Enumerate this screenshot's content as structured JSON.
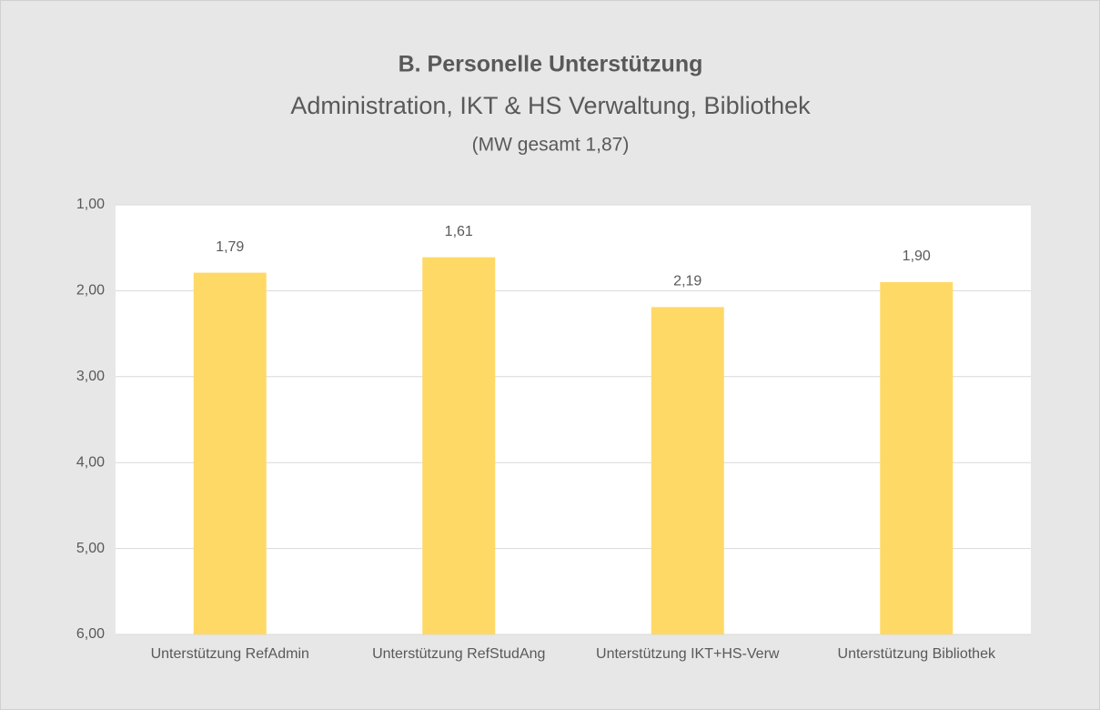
{
  "chart_data": {
    "type": "bar",
    "title": "B. Personelle Unterstützung",
    "subtitle": "Administration, IKT & HS Verwaltung, Bibliothek",
    "annotation": "(MW gesamt 1,87)",
    "categories": [
      "Unterstützung RefAdmin",
      "Unterstützung RefStudAng",
      "Unterstützung IKT+HS-Verw",
      "Unterstützung Bibliothek"
    ],
    "values": [
      1.79,
      1.61,
      2.19,
      1.9
    ],
    "value_labels": [
      "1,79",
      "1,61",
      "2,19",
      "1,90"
    ],
    "color": "#ffd966",
    "ylim": [
      6,
      1
    ],
    "yticks": [
      {
        "value": 1,
        "label": "1,00"
      },
      {
        "value": 2,
        "label": "2,00"
      },
      {
        "value": 3,
        "label": "3,00"
      },
      {
        "value": 4,
        "label": "4,00"
      },
      {
        "value": 5,
        "label": "5,00"
      },
      {
        "value": 6,
        "label": "6,00"
      }
    ],
    "grid": true
  }
}
